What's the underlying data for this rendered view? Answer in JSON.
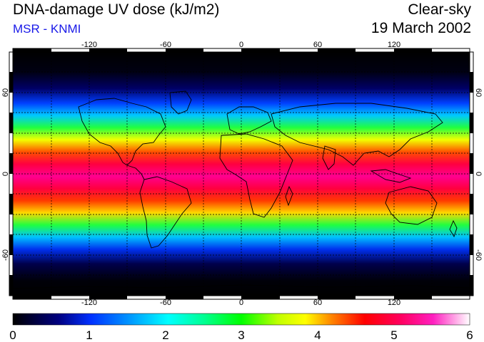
{
  "header": {
    "title": "DNA-damage UV dose (kJ/m2)",
    "subtitle": "MSR - KNMI",
    "condition": "Clear-sky",
    "date": "19 March 2002"
  },
  "map": {
    "lon_ticks": [
      "-120",
      "-60",
      "0",
      "60",
      "120"
    ],
    "lat_ticks": [
      "60",
      "0",
      "-60"
    ],
    "colorbar_ticks": [
      "0",
      "1",
      "2",
      "3",
      "4",
      "5",
      "6"
    ],
    "colorbar_range": [
      0,
      6
    ],
    "colors": {
      "background": "#000000",
      "continent_lines": "#000000",
      "grid": "#000000",
      "subtitle": "#1818e8"
    }
  }
}
